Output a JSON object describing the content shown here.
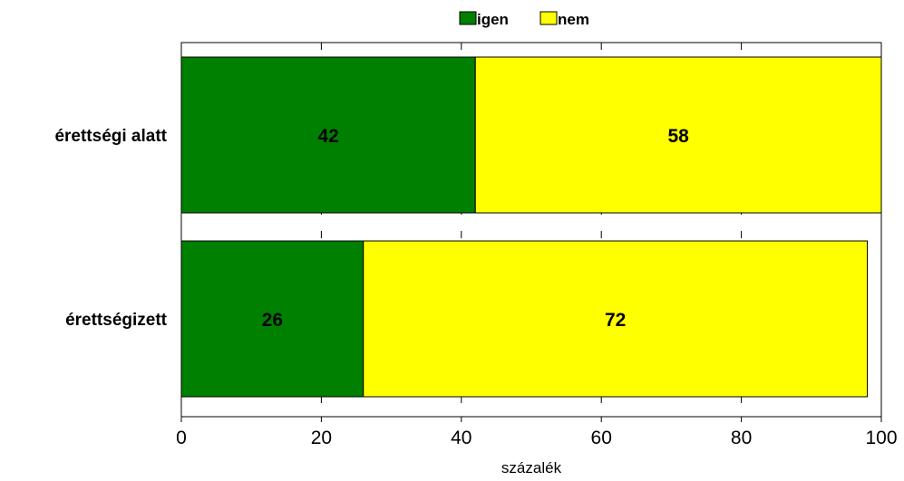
{
  "chart_data": {
    "type": "bar",
    "orientation": "horizontal",
    "stacked": true,
    "categories": [
      "érettségi alatt",
      "érettségizett"
    ],
    "series": [
      {
        "name": "igen",
        "values": [
          42,
          26
        ],
        "color": "#008000"
      },
      {
        "name": "nem",
        "values": [
          58,
          72
        ],
        "color": "#ffff00"
      }
    ],
    "xlabel": "százalék",
    "ylabel": "",
    "xlim": [
      0,
      100
    ],
    "xticks": [
      0,
      20,
      40,
      60,
      80,
      100
    ],
    "grid": "x-dashed",
    "legend": "top-center"
  }
}
